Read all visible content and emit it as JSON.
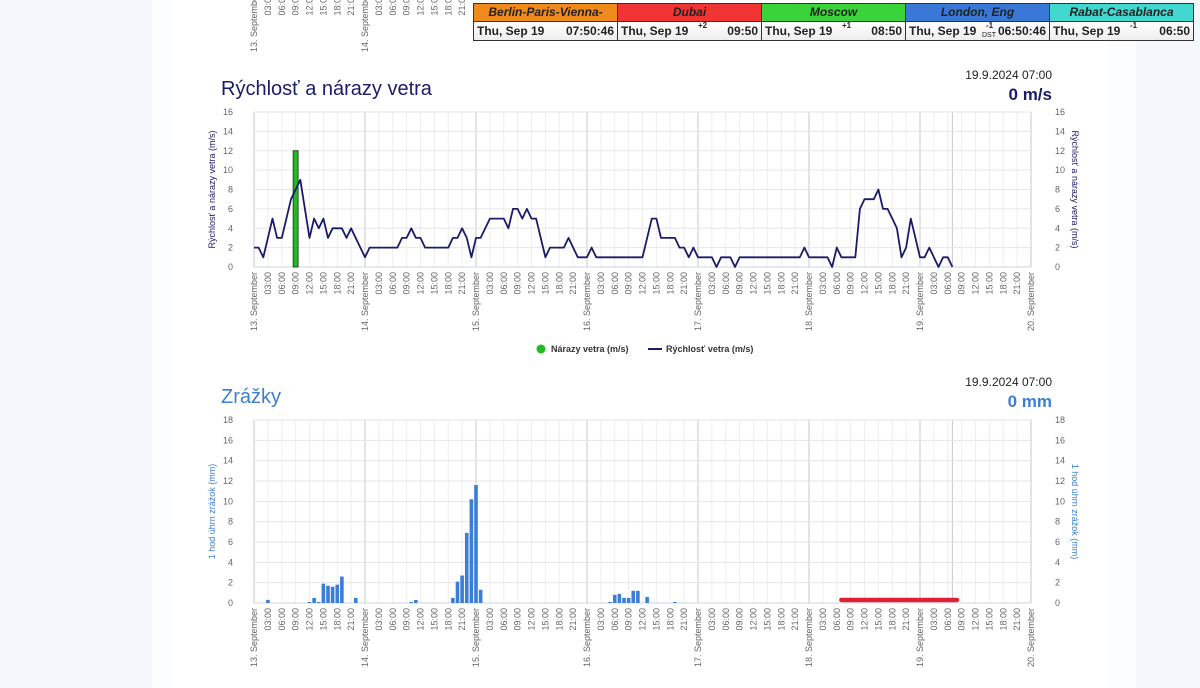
{
  "colors": {
    "wind_line": "#1b1b6b",
    "gust_bar": "#22bb22",
    "precip_bar": "#3a7fd5",
    "precip_title": "#3d7fd0",
    "forecast_line": "#dd2233"
  },
  "clocks": [
    {
      "city": "Berlin-Paris-Vienna-Roma",
      "date": "Thu, Sep 19",
      "offset": "",
      "dst": "",
      "time": "07:50:46",
      "color": "#f08a1c"
    },
    {
      "city": "Dubai",
      "date": "Thu, Sep 19",
      "offset": "+2",
      "dst": "",
      "time": "09:50",
      "color": "#f03434"
    },
    {
      "city": "Moscow",
      "date": "Thu, Sep 19",
      "offset": "+1",
      "dst": "",
      "time": "08:50",
      "color": "#3ad43a"
    },
    {
      "city": "London, Eng",
      "date": "Thu, Sep 19",
      "offset": "-1",
      "dst": "DST",
      "time": "06:50:46",
      "color": "#3a78d8"
    },
    {
      "city": "Rabat-Casablanca",
      "date": "Thu, Sep 19",
      "offset": "-1",
      "dst": "",
      "time": "06:50",
      "color": "#42d8d0"
    }
  ],
  "wind": {
    "title": "Rýchlosť a nárazy vetra",
    "stamp": "19.9.2024 07:00",
    "current": "0 m/s"
  },
  "precip": {
    "title": "Zrážky",
    "stamp": "19.9.2024 07:00",
    "current": "0 mm"
  },
  "chart_data": [
    {
      "type": "line",
      "title": "Rýchlosť a nárazy vetra",
      "ylabel": "Rýchlosť a nárazy vetra (m/s)",
      "ylim": [
        0,
        16
      ],
      "yticks": [
        0,
        2,
        4,
        6,
        8,
        10,
        12,
        14,
        16
      ],
      "xlim": [
        "2024-09-13 00:00",
        "2024-09-20 00:00"
      ],
      "xtick_days": [
        "13. September",
        "14. September",
        "15. September",
        "16. September",
        "17. September",
        "18. September",
        "19. September",
        "20. September"
      ],
      "xtick_hours": [
        "03:00",
        "06:00",
        "09:00",
        "12:00",
        "15:00",
        "18:00",
        "21:00"
      ],
      "now": "2024-09-19 07:00",
      "grid": true,
      "legend": "bottom",
      "series": [
        {
          "name": "Nárazy vetra (m/s)",
          "type": "bar",
          "points": [
            [
              "2024-09-13 09:00",
              12
            ]
          ]
        },
        {
          "name": "Rýchlosť vetra (m/s)",
          "type": "line",
          "points": [
            [
              "2024-09-13 00:00",
              2
            ],
            [
              "2024-09-13 01:00",
              2
            ],
            [
              "2024-09-13 02:00",
              1
            ],
            [
              "2024-09-13 04:00",
              5
            ],
            [
              "2024-09-13 05:00",
              3
            ],
            [
              "2024-09-13 06:00",
              3
            ],
            [
              "2024-09-13 08:00",
              7
            ],
            [
              "2024-09-13 10:00",
              9
            ],
            [
              "2024-09-13 12:00",
              3
            ],
            [
              "2024-09-13 13:00",
              5
            ],
            [
              "2024-09-13 14:00",
              4
            ],
            [
              "2024-09-13 15:00",
              5
            ],
            [
              "2024-09-13 16:00",
              3
            ],
            [
              "2024-09-13 17:00",
              4
            ],
            [
              "2024-09-13 19:00",
              4
            ],
            [
              "2024-09-13 20:00",
              3
            ],
            [
              "2024-09-13 21:00",
              4
            ],
            [
              "2024-09-14 00:00",
              1
            ],
            [
              "2024-09-14 01:00",
              2
            ],
            [
              "2024-09-14 07:00",
              2
            ],
            [
              "2024-09-14 08:00",
              3
            ],
            [
              "2024-09-14 09:00",
              3
            ],
            [
              "2024-09-14 10:00",
              4
            ],
            [
              "2024-09-14 11:00",
              3
            ],
            [
              "2024-09-14 12:00",
              3
            ],
            [
              "2024-09-14 13:00",
              2
            ],
            [
              "2024-09-14 18:00",
              2
            ],
            [
              "2024-09-14 19:00",
              3
            ],
            [
              "2024-09-14 20:00",
              3
            ],
            [
              "2024-09-14 21:00",
              4
            ],
            [
              "2024-09-14 22:00",
              3
            ],
            [
              "2024-09-14 23:00",
              1
            ],
            [
              "2024-09-15 00:00",
              3
            ],
            [
              "2024-09-15 01:00",
              3
            ],
            [
              "2024-09-15 03:00",
              5
            ],
            [
              "2024-09-15 06:00",
              5
            ],
            [
              "2024-09-15 07:00",
              4
            ],
            [
              "2024-09-15 08:00",
              6
            ],
            [
              "2024-09-15 09:00",
              6
            ],
            [
              "2024-09-15 10:00",
              5
            ],
            [
              "2024-09-15 11:00",
              6
            ],
            [
              "2024-09-15 12:00",
              5
            ],
            [
              "2024-09-15 13:00",
              5
            ],
            [
              "2024-09-15 15:00",
              1
            ],
            [
              "2024-09-15 16:00",
              2
            ],
            [
              "2024-09-15 19:00",
              2
            ],
            [
              "2024-09-15 20:00",
              3
            ],
            [
              "2024-09-15 22:00",
              1
            ],
            [
              "2024-09-16 00:00",
              1
            ],
            [
              "2024-09-16 01:00",
              2
            ],
            [
              "2024-09-16 02:00",
              1
            ],
            [
              "2024-09-16 12:00",
              1
            ],
            [
              "2024-09-16 14:00",
              5
            ],
            [
              "2024-09-16 15:00",
              5
            ],
            [
              "2024-09-16 16:00",
              3
            ],
            [
              "2024-09-16 19:00",
              3
            ],
            [
              "2024-09-16 20:00",
              2
            ],
            [
              "2024-09-16 21:00",
              2
            ],
            [
              "2024-09-16 22:00",
              1
            ],
            [
              "2024-09-16 23:00",
              2
            ],
            [
              "2024-09-17 00:00",
              1
            ],
            [
              "2024-09-17 03:00",
              1
            ],
            [
              "2024-09-17 04:00",
              0
            ],
            [
              "2024-09-17 05:00",
              1
            ],
            [
              "2024-09-17 07:00",
              1
            ],
            [
              "2024-09-17 08:00",
              0
            ],
            [
              "2024-09-17 09:00",
              1
            ],
            [
              "2024-09-17 22:00",
              1
            ],
            [
              "2024-09-17 23:00",
              2
            ],
            [
              "2024-09-18 00:00",
              1
            ],
            [
              "2024-09-18 04:00",
              1
            ],
            [
              "2024-09-18 05:00",
              0
            ],
            [
              "2024-09-18 06:00",
              2
            ],
            [
              "2024-09-18 07:00",
              1
            ],
            [
              "2024-09-18 10:00",
              1
            ],
            [
              "2024-09-18 11:00",
              6
            ],
            [
              "2024-09-18 12:00",
              7
            ],
            [
              "2024-09-18 14:00",
              7
            ],
            [
              "2024-09-18 15:00",
              8
            ],
            [
              "2024-09-18 16:00",
              6
            ],
            [
              "2024-09-18 17:00",
              6
            ],
            [
              "2024-09-18 18:00",
              5
            ],
            [
              "2024-09-18 19:00",
              4
            ],
            [
              "2024-09-18 20:00",
              1
            ],
            [
              "2024-09-18 21:00",
              2
            ],
            [
              "2024-09-18 22:00",
              5
            ],
            [
              "2024-09-19 00:00",
              1
            ],
            [
              "2024-09-19 01:00",
              1
            ],
            [
              "2024-09-19 02:00",
              2
            ],
            [
              "2024-09-19 04:00",
              0
            ],
            [
              "2024-09-19 05:00",
              1
            ],
            [
              "2024-09-19 06:00",
              1
            ],
            [
              "2024-09-19 07:00",
              0
            ]
          ]
        }
      ]
    },
    {
      "type": "bar",
      "title": "Zrážky",
      "ylabel": "1 hod úhrn zrážok (mm)",
      "ylim": [
        0,
        18
      ],
      "yticks": [
        0,
        2,
        4,
        6,
        8,
        10,
        12,
        14,
        16,
        18
      ],
      "xlim": [
        "2024-09-13 00:00",
        "2024-09-20 00:00"
      ],
      "xtick_days": [
        "13. September",
        "14. September",
        "15. September",
        "16. September",
        "17. September",
        "18. September",
        "19. September",
        "20. September"
      ],
      "xtick_hours": [
        "03:00",
        "06:00",
        "09:00",
        "12:00",
        "15:00",
        "18:00",
        "21:00"
      ],
      "now": "2024-09-19 07:00",
      "grid": true,
      "series": [
        {
          "type": "bar",
          "points": [
            [
              "2024-09-13 03:00",
              0.3
            ],
            [
              "2024-09-13 12:00",
              0.1
            ],
            [
              "2024-09-13 13:00",
              0.5
            ],
            [
              "2024-09-13 14:00",
              0.1
            ],
            [
              "2024-09-13 15:00",
              1.9
            ],
            [
              "2024-09-13 16:00",
              1.7
            ],
            [
              "2024-09-13 17:00",
              1.6
            ],
            [
              "2024-09-13 18:00",
              1.8
            ],
            [
              "2024-09-13 19:00",
              2.6
            ],
            [
              "2024-09-13 22:00",
              0.5
            ],
            [
              "2024-09-14 10:00",
              0.1
            ],
            [
              "2024-09-14 11:00",
              0.3
            ],
            [
              "2024-09-14 19:00",
              0.5
            ],
            [
              "2024-09-14 20:00",
              2.1
            ],
            [
              "2024-09-14 21:00",
              2.7
            ],
            [
              "2024-09-14 22:00",
              6.9
            ],
            [
              "2024-09-14 23:00",
              10.2
            ],
            [
              "2024-09-15 00:00",
              11.6
            ],
            [
              "2024-09-15 01:00",
              1.3
            ],
            [
              "2024-09-16 05:00",
              0.1
            ],
            [
              "2024-09-16 06:00",
              0.8
            ],
            [
              "2024-09-16 07:00",
              0.9
            ],
            [
              "2024-09-16 08:00",
              0.5
            ],
            [
              "2024-09-16 09:00",
              0.5
            ],
            [
              "2024-09-16 10:00",
              1.2
            ],
            [
              "2024-09-16 11:00",
              1.2
            ],
            [
              "2024-09-16 13:00",
              0.6
            ],
            [
              "2024-09-16 19:00",
              0.1
            ]
          ]
        },
        {
          "type": "range-line",
          "from": "2024-09-18 07:00",
          "to": "2024-09-19 08:00",
          "value": 0.3
        }
      ]
    }
  ]
}
